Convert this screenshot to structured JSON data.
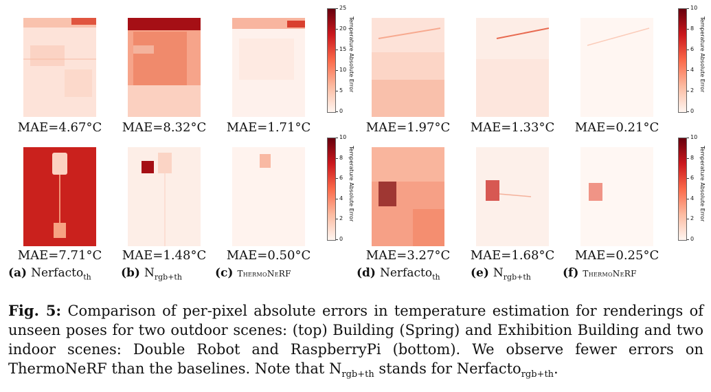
{
  "figure": {
    "panels": [
      {
        "id": "a-top",
        "mae": "MAE=4.67°C"
      },
      {
        "id": "b-top",
        "mae": "MAE=8.32°C"
      },
      {
        "id": "c-top",
        "mae": "MAE=1.71°C"
      },
      {
        "id": "d-top",
        "mae": "MAE=1.97°C"
      },
      {
        "id": "e-top",
        "mae": "MAE=1.33°C"
      },
      {
        "id": "f-top",
        "mae": "MAE=0.21°C"
      },
      {
        "id": "a-bot",
        "mae": "MAE=7.71°C"
      },
      {
        "id": "b-bot",
        "mae": "MAE=1.48°C"
      },
      {
        "id": "c-bot",
        "mae": "MAE=0.50°C"
      },
      {
        "id": "d-bot",
        "mae": "MAE=3.27°C"
      },
      {
        "id": "e-bot",
        "mae": "MAE=1.68°C"
      },
      {
        "id": "f-bot",
        "mae": "MAE=0.25°C"
      }
    ],
    "subcaptions": [
      {
        "letter": "(a)",
        "name": "Nerfacto",
        "sub": "th"
      },
      {
        "letter": "(b)",
        "name": "N",
        "sub": "rgb+th"
      },
      {
        "letter": "(c)",
        "name": "ThermoNeRF",
        "sub": ""
      },
      {
        "letter": "(d)",
        "name": "Nerfacto",
        "sub": "th"
      },
      {
        "letter": "(e)",
        "name": "N",
        "sub": "rgb+th"
      },
      {
        "letter": "(f)",
        "name": "ThermoNeRF",
        "sub": ""
      }
    ],
    "colorbars": [
      {
        "label": "Temperature Absolute Error",
        "ticks": [
          "25",
          "20",
          "15",
          "10",
          "5",
          "0"
        ]
      },
      {
        "label": "Temperature Absolute Error",
        "ticks": [
          "10",
          "8",
          "6",
          "4",
          "2",
          "0"
        ]
      },
      {
        "label": "Temperature Absolute Error",
        "ticks": [
          "10",
          "8",
          "6",
          "4",
          "2",
          "0"
        ]
      },
      {
        "label": "Temperature Absolute Error",
        "ticks": [
          "10",
          "8",
          "6",
          "4",
          "2",
          "0"
        ]
      }
    ],
    "caption": {
      "label": "Fig. 5:",
      "text1": " Comparison of per-pixel absolute errors in temperature estimation for renderings of unseen poses for two outdoor scenes: (top) Building (Spring) and Exhibition Building and two indoor scenes: Double Robot and RaspberryPi (bottom). We observe fewer errors on ThermoNeRF than the baselines. Note that N",
      "sub1": "rgb+th",
      "text2": " stands for Nerfacto",
      "sub2": "rgb+th",
      "text3": "."
    },
    "colors": {
      "low": "#fff5f0",
      "mid": "#fb6a4a",
      "high": "#67000d"
    }
  }
}
